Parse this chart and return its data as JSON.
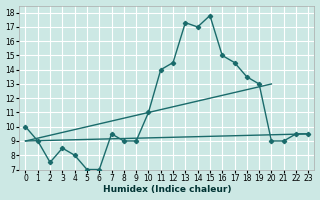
{
  "xlabel": "Humidex (Indice chaleur)",
  "xlim": [
    -0.5,
    23.5
  ],
  "ylim": [
    7,
    18.5
  ],
  "xticks": [
    0,
    1,
    2,
    3,
    4,
    5,
    6,
    7,
    8,
    9,
    10,
    11,
    12,
    13,
    14,
    15,
    16,
    17,
    18,
    19,
    20,
    21,
    22,
    23
  ],
  "yticks": [
    7,
    8,
    9,
    10,
    11,
    12,
    13,
    14,
    15,
    16,
    17,
    18
  ],
  "bg_color": "#cce8e4",
  "grid_color": "#ffffff",
  "line_color": "#1a6b6b",
  "line1_x": [
    0,
    1,
    2,
    3,
    4,
    5,
    6,
    7,
    8,
    9,
    10,
    11,
    12,
    13,
    14,
    15,
    16,
    17,
    18,
    19,
    20,
    21,
    22,
    23
  ],
  "line1_y": [
    10,
    9,
    7.5,
    8.5,
    8,
    7,
    7,
    9.5,
    9,
    9,
    11,
    14,
    14.5,
    17.3,
    17.0,
    17.8,
    15,
    14.5,
    13.5,
    13,
    9,
    9.0,
    9.5,
    9.5
  ],
  "line2_x": [
    0,
    20
  ],
  "line2_y": [
    9,
    13
  ],
  "line3_x": [
    0,
    23
  ],
  "line3_y": [
    9,
    9.5
  ]
}
